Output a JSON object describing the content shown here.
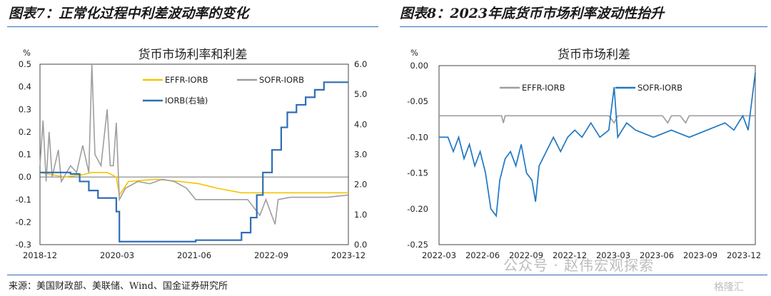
{
  "header": {
    "left_title": "图表7：正常化过程中利差波动率的变化",
    "right_title": "图表8：2023年底货币市场利率波动性抬升"
  },
  "source": "来源：美国财政部、美联储、Wind、国金证券研究所",
  "watermark": "公众号 · 赵伟宏观探索",
  "watermark2": "格隆汇",
  "chart_data": [
    {
      "type": "line",
      "title": "货币市场利率和利差",
      "yunit_left": "%",
      "ylim_left": [
        -0.3,
        0.5
      ],
      "yticks_left": [
        "0.5",
        "0.4",
        "0.3",
        "0.2",
        "0.1",
        "0.0",
        "-0.1",
        "-0.2",
        "-0.3"
      ],
      "ylim_right": [
        0.0,
        6.0
      ],
      "yticks_right": [
        "6.0",
        "5.0",
        "4.0",
        "3.0",
        "2.0",
        "1.0",
        "0.0"
      ],
      "xticks": [
        "2018-12",
        "2020-03",
        "2021-06",
        "2022-09",
        "2023-12"
      ],
      "legend": [
        "EFFR-IORB",
        "SOFR-IORB",
        "IORB(右轴)"
      ],
      "series": [
        {
          "name": "EFFR-IORB",
          "color": "#f5c400",
          "axis": "left",
          "points": [
            [
              2018.9,
              0.02
            ],
            [
              2019.3,
              0.0
            ],
            [
              2019.6,
              0.01
            ],
            [
              2019.75,
              0.02
            ],
            [
              2020.0,
              0.02
            ],
            [
              2020.15,
              0.0
            ],
            [
              2020.2,
              -0.08
            ],
            [
              2020.35,
              -0.02
            ],
            [
              2020.8,
              -0.01
            ],
            [
              2021.2,
              -0.02
            ],
            [
              2021.5,
              -0.03
            ],
            [
              2021.8,
              -0.05
            ],
            [
              2022.2,
              -0.07
            ],
            [
              2022.5,
              -0.07
            ],
            [
              2022.9,
              -0.07
            ],
            [
              2023.3,
              -0.07
            ],
            [
              2023.95,
              -0.07
            ]
          ]
        },
        {
          "name": "SOFR-IORB",
          "color": "#9e9e9e",
          "axis": "left",
          "points": [
            [
              2018.9,
              0.05
            ],
            [
              2018.95,
              0.25
            ],
            [
              2019.0,
              -0.02
            ],
            [
              2019.05,
              0.2
            ],
            [
              2019.1,
              0.0
            ],
            [
              2019.2,
              0.12
            ],
            [
              2019.25,
              -0.02
            ],
            [
              2019.4,
              0.05
            ],
            [
              2019.5,
              0.02
            ],
            [
              2019.6,
              0.14
            ],
            [
              2019.7,
              0.02
            ],
            [
              2019.75,
              0.5
            ],
            [
              2019.8,
              0.1
            ],
            [
              2019.9,
              0.05
            ],
            [
              2020.0,
              0.3
            ],
            [
              2020.05,
              0.05
            ],
            [
              2020.1,
              0.05
            ],
            [
              2020.15,
              0.24
            ],
            [
              2020.2,
              -0.1
            ],
            [
              2020.3,
              -0.05
            ],
            [
              2020.5,
              -0.02
            ],
            [
              2020.7,
              -0.03
            ],
            [
              2020.9,
              -0.01
            ],
            [
              2021.1,
              -0.02
            ],
            [
              2021.3,
              -0.05
            ],
            [
              2021.45,
              -0.1
            ],
            [
              2021.7,
              -0.1
            ],
            [
              2022.0,
              -0.1
            ],
            [
              2022.3,
              -0.1
            ],
            [
              2022.5,
              -0.17
            ],
            [
              2022.6,
              -0.1
            ],
            [
              2022.75,
              -0.21
            ],
            [
              2022.8,
              -0.1
            ],
            [
              2023.0,
              -0.09
            ],
            [
              2023.3,
              -0.09
            ],
            [
              2023.6,
              -0.09
            ],
            [
              2023.95,
              -0.08
            ]
          ]
        },
        {
          "name": "IORB(右轴)",
          "color": "#2f6db5",
          "axis": "right",
          "points": [
            [
              2018.9,
              2.4
            ],
            [
              2019.4,
              2.35
            ],
            [
              2019.55,
              2.1
            ],
            [
              2019.7,
              1.8
            ],
            [
              2019.85,
              1.55
            ],
            [
              2020.15,
              1.1
            ],
            [
              2020.2,
              0.1
            ],
            [
              2021.45,
              0.15
            ],
            [
              2022.2,
              0.4
            ],
            [
              2022.35,
              0.9
            ],
            [
              2022.45,
              1.65
            ],
            [
              2022.55,
              2.4
            ],
            [
              2022.7,
              3.15
            ],
            [
              2022.85,
              3.9
            ],
            [
              2022.95,
              4.4
            ],
            [
              2023.1,
              4.65
            ],
            [
              2023.25,
              4.9
            ],
            [
              2023.4,
              5.15
            ],
            [
              2023.55,
              5.4
            ],
            [
              2023.95,
              5.4
            ]
          ]
        }
      ]
    },
    {
      "type": "line",
      "title": "货币市场利差",
      "yunit": "%",
      "ylim": [
        -0.25,
        0.0
      ],
      "yticks": [
        "0.00",
        "-0.05",
        "-0.10",
        "-0.15",
        "-0.20",
        "-0.25"
      ],
      "xticks": [
        "2022-03",
        "2022-06",
        "2022-09",
        "2022-12",
        "2023-03",
        "2023-06",
        "2023-09",
        "2023-12"
      ],
      "legend": [
        "EFFR-IORB",
        "SOFR-IORB"
      ],
      "series": [
        {
          "name": "EFFR-IORB",
          "color": "#9e9e9e",
          "points": [
            [
              2022.2,
              -0.07
            ],
            [
              2022.55,
              -0.07
            ],
            [
              2022.56,
              -0.08
            ],
            [
              2022.57,
              -0.07
            ],
            [
              2023.15,
              -0.07
            ],
            [
              2023.18,
              -0.08
            ],
            [
              2023.2,
              -0.07
            ],
            [
              2023.45,
              -0.07
            ],
            [
              2023.48,
              -0.08
            ],
            [
              2023.5,
              -0.07
            ],
            [
              2023.55,
              -0.07
            ],
            [
              2023.58,
              -0.08
            ],
            [
              2023.6,
              -0.07
            ],
            [
              2023.97,
              -0.07
            ]
          ]
        },
        {
          "name": "SOFR-IORB",
          "color": "#1f77c4",
          "points": [
            [
              2022.2,
              -0.1
            ],
            [
              2022.25,
              -0.1
            ],
            [
              2022.28,
              -0.12
            ],
            [
              2022.31,
              -0.1
            ],
            [
              2022.34,
              -0.13
            ],
            [
              2022.37,
              -0.11
            ],
            [
              2022.4,
              -0.14
            ],
            [
              2022.43,
              -0.12
            ],
            [
              2022.46,
              -0.15
            ],
            [
              2022.49,
              -0.2
            ],
            [
              2022.52,
              -0.21
            ],
            [
              2022.54,
              -0.16
            ],
            [
              2022.57,
              -0.13
            ],
            [
              2022.6,
              -0.12
            ],
            [
              2022.63,
              -0.14
            ],
            [
              2022.66,
              -0.11
            ],
            [
              2022.69,
              -0.15
            ],
            [
              2022.72,
              -0.16
            ],
            [
              2022.74,
              -0.19
            ],
            [
              2022.76,
              -0.14
            ],
            [
              2022.8,
              -0.12
            ],
            [
              2022.84,
              -0.1
            ],
            [
              2022.88,
              -0.12
            ],
            [
              2022.92,
              -0.1
            ],
            [
              2022.96,
              -0.09
            ],
            [
              2023.0,
              -0.1
            ],
            [
              2023.05,
              -0.08
            ],
            [
              2023.1,
              -0.1
            ],
            [
              2023.15,
              -0.09
            ],
            [
              2023.18,
              -0.03
            ],
            [
              2023.2,
              -0.1
            ],
            [
              2023.25,
              -0.08
            ],
            [
              2023.3,
              -0.09
            ],
            [
              2023.4,
              -0.1
            ],
            [
              2023.5,
              -0.09
            ],
            [
              2023.6,
              -0.1
            ],
            [
              2023.7,
              -0.09
            ],
            [
              2023.8,
              -0.08
            ],
            [
              2023.85,
              -0.09
            ],
            [
              2023.9,
              -0.07
            ],
            [
              2023.93,
              -0.09
            ],
            [
              2023.95,
              -0.05
            ],
            [
              2023.97,
              -0.01
            ]
          ]
        }
      ]
    }
  ]
}
